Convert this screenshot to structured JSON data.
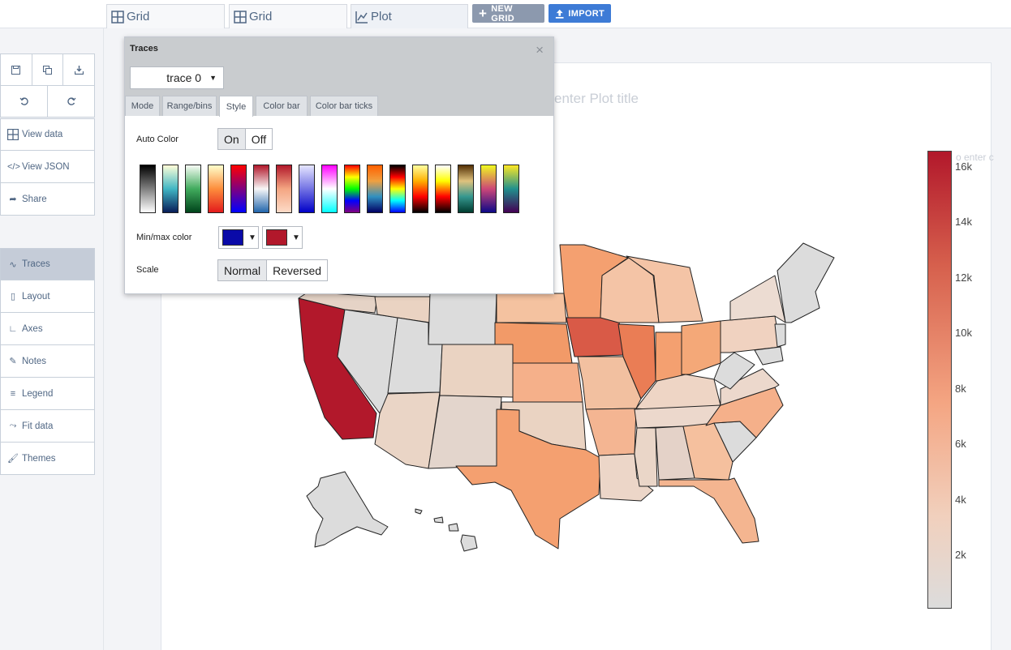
{
  "tabs": [
    {
      "label": "Grid",
      "icon": "grid-icon"
    },
    {
      "label": "Grid",
      "icon": "grid-icon"
    },
    {
      "label": "Plot",
      "icon": "line-chart-icon"
    }
  ],
  "top_buttons": {
    "new_grid": "NEW GRID",
    "import": "IMPORT",
    "new_grid_color": "#8c99ae",
    "import_color": "#3d7bd6"
  },
  "sidebar": {
    "icon_row_1": [
      "save-icon",
      "copy-icon",
      "download-icon"
    ],
    "icon_row_2": [
      "undo-icon",
      "redo-icon"
    ],
    "items_top": [
      {
        "label": "View data",
        "icon": "grid-icon"
      },
      {
        "label": "View JSON",
        "icon": "code-icon"
      },
      {
        "label": "Share",
        "icon": "share-icon"
      }
    ],
    "items_bottom": [
      {
        "label": "Traces",
        "icon": "traces-icon",
        "active": true
      },
      {
        "label": "Layout",
        "icon": "layout-icon"
      },
      {
        "label": "Axes",
        "icon": "axes-icon"
      },
      {
        "label": "Notes",
        "icon": "pencil-icon"
      },
      {
        "label": "Legend",
        "icon": "legend-icon"
      },
      {
        "label": "Fit data",
        "icon": "fit-icon"
      },
      {
        "label": "Themes",
        "icon": "paint-roller-icon"
      }
    ]
  },
  "plot": {
    "title_placeholder": "enter Plot title",
    "colorbar_title_placeholder": "o enter c",
    "colorbar_ticks": [
      "16k",
      "14k",
      "12k",
      "10k",
      "8k",
      "6k",
      "4k",
      "2k"
    ],
    "colorscale": [
      "#dcdcdc",
      "#f4a582",
      "#b2182b"
    ]
  },
  "panel": {
    "title": "Traces",
    "trace_select": "trace 0",
    "tabs": [
      "Mode",
      "Range/bins",
      "Style",
      "Color bar",
      "Color bar ticks"
    ],
    "active_tab": "Style",
    "auto_color": {
      "label": "Auto Color",
      "on": "On",
      "off": "Off",
      "selected": "On"
    },
    "colorscales": [
      [
        "#000000",
        "#ffffff"
      ],
      [
        "#ffffd9",
        "#41b6c4",
        "#081d58"
      ],
      [
        "#f7fcf5",
        "#41ab5d",
        "#00441b"
      ],
      [
        "#ffffcc",
        "#fd8d3c",
        "#e31a1c"
      ],
      [
        "#ff0000",
        "#0000ff"
      ],
      [
        "#b2182b",
        "#f7f7f7",
        "#2166ac"
      ],
      [
        "#b2182b",
        "#f4a582",
        "#fddbc7"
      ],
      [
        "#e6e6ff",
        "#0000c8"
      ],
      [
        "#ff00ff",
        "#ffffff",
        "#00ffff"
      ],
      [
        "#ff0000",
        "#ffff00",
        "#00ff00",
        "#0000ff",
        "#800080"
      ],
      [
        "#ff6000",
        "#f0a040",
        "#3090c0",
        "#000064"
      ],
      [
        "#000000",
        "#ff0000",
        "#ffff00",
        "#00ffff",
        "#0000ff"
      ],
      [
        "#ffffa0",
        "#ffb000",
        "#ff0000",
        "#000000"
      ],
      [
        "#ffffff",
        "#ffff00",
        "#ff0000",
        "#000000"
      ],
      [
        "#543005",
        "#dfc27d",
        "#35978f",
        "#003c30"
      ],
      [
        "#f0f921",
        "#cc4778",
        "#0d0887"
      ],
      [
        "#fde725",
        "#21908d",
        "#440154"
      ]
    ],
    "minmax": {
      "label": "Min/max color",
      "min_color": "#0a0aa8",
      "max_color": "#b2182b"
    },
    "scale": {
      "label": "Scale",
      "normal": "Normal",
      "reversed": "Reversed"
    }
  }
}
